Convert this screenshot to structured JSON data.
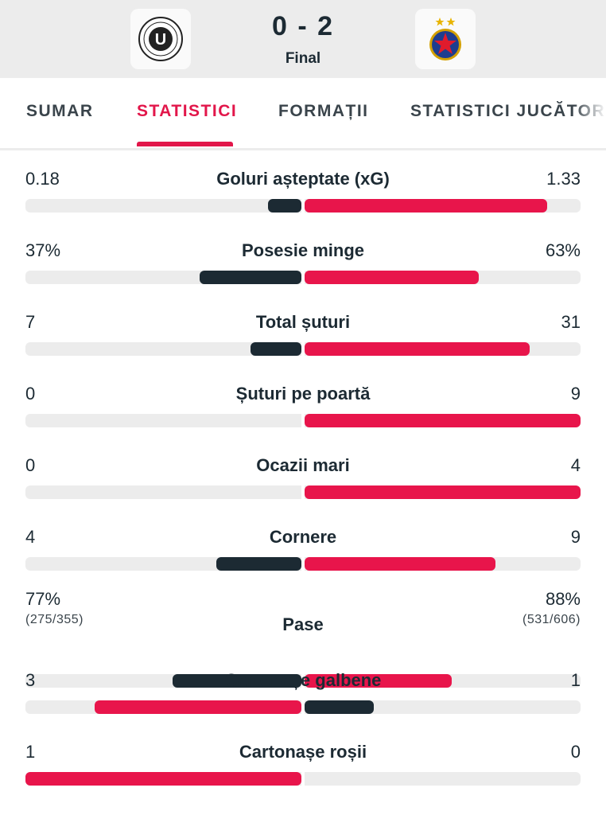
{
  "match": {
    "score": "0 - 2",
    "status": "Final",
    "home_logo": "universitatea-cluj-crest",
    "away_logo": "fcsb-crest"
  },
  "tabs": [
    {
      "label": "SUMAR",
      "active": false
    },
    {
      "label": "STATISTICI",
      "active": true
    },
    {
      "label": "FORMAȚII",
      "active": false
    },
    {
      "label": "STATISTICI JUCĂTORI",
      "active": false
    }
  ],
  "colors": {
    "accent": "#e2164a",
    "winner_bar": "#e8154b",
    "loser_bar": "#1c2a33",
    "track": "#ececec",
    "header_bg": "#ececec"
  },
  "stats": [
    {
      "name": "Goluri așteptate (xG)",
      "home": "0.18",
      "away": "1.33",
      "home_share": 0.12,
      "away_share": 0.88,
      "leader": "away"
    },
    {
      "name": "Posesie minge",
      "home": "37%",
      "away": "63%",
      "home_share": 0.37,
      "away_share": 0.63,
      "leader": "away"
    },
    {
      "name": "Total șuturi",
      "home": "7",
      "away": "31",
      "home_share": 0.184,
      "away_share": 0.816,
      "leader": "away"
    },
    {
      "name": "Șuturi pe poartă",
      "home": "0",
      "away": "9",
      "home_share": 0,
      "away_share": 1,
      "leader": "away"
    },
    {
      "name": "Ocazii mari",
      "home": "0",
      "away": "4",
      "home_share": 0,
      "away_share": 1,
      "leader": "away"
    },
    {
      "name": "Cornere",
      "home": "4",
      "away": "9",
      "home_share": 0.308,
      "away_share": 0.692,
      "leader": "away"
    },
    {
      "name": "Pase",
      "home": "77%",
      "away": "88%",
      "home_sub": "(275/355)",
      "away_sub": "(531/606)",
      "home_share": 0.467,
      "away_share": 0.533,
      "leader": "away"
    },
    {
      "name": "Cartonașe galbene",
      "home": "3",
      "away": "1",
      "home_share": 0.75,
      "away_share": 0.25,
      "leader": "home"
    },
    {
      "name": "Cartonașe roșii",
      "home": "1",
      "away": "0",
      "home_share": 1,
      "away_share": 0,
      "leader": "home"
    }
  ]
}
